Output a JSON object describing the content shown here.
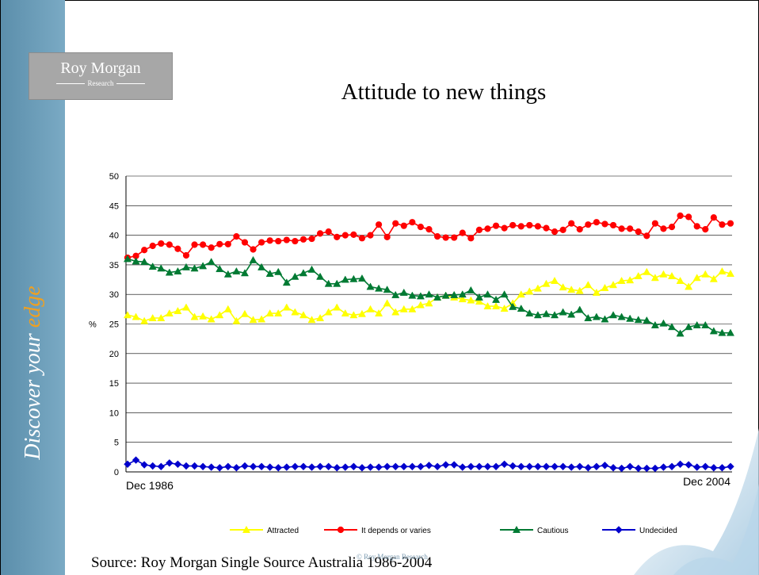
{
  "header": {
    "logo_name": "Roy Morgan",
    "logo_sub": "Research",
    "sidebar_tagline_main": "Discover your ",
    "sidebar_tagline_accent": "edge"
  },
  "footer": {
    "source": "Source: Roy Morgan Single Source Australia 1986-2004",
    "copyright": "© Roy Morgan Research"
  },
  "colors": {
    "sidebar": "#6a9cb8",
    "accent": "#f0a020",
    "attracted": "#ffff00",
    "depends": "#ff0000",
    "cautious": "#007a33",
    "undecided": "#0000cc"
  },
  "chart_data": {
    "type": "line",
    "title": "Attitude to new things",
    "ylabel": "%",
    "xlabel": "",
    "x_start_label": "Dec 1986",
    "x_end_label": "Dec 2004",
    "ylim": [
      0,
      50
    ],
    "yticks": [
      0,
      5,
      10,
      15,
      20,
      25,
      30,
      35,
      40,
      45,
      50
    ],
    "grid": "horizontal",
    "legend_position": "bottom",
    "series": [
      {
        "name": "Attracted",
        "color": "#ffff00",
        "marker": "triangle",
        "values": [
          26.5,
          26.2,
          25.5,
          26.0,
          26.0,
          26.8,
          27.2,
          27.8,
          26.2,
          26.3,
          25.8,
          26.5,
          27.5,
          25.5,
          26.7,
          25.7,
          25.8,
          26.8,
          26.8,
          27.8,
          27.0,
          26.5,
          25.7,
          26.0,
          27.0,
          27.8,
          26.8,
          26.5,
          26.7,
          27.5,
          26.8,
          28.5,
          27.0,
          27.5,
          27.5,
          28.2,
          28.5,
          29.5,
          29.8,
          29.5,
          29.2,
          29.0,
          28.8,
          28.0,
          28.0,
          27.6,
          28.5,
          30.0,
          30.5,
          31.0,
          31.8,
          32.3,
          31.2,
          30.8,
          30.6,
          31.6,
          30.3,
          31.1,
          31.6,
          32.3,
          32.4,
          33.1,
          33.8,
          32.8,
          33.4,
          33.1,
          32.3,
          31.3,
          32.8,
          33.4,
          32.6,
          33.9,
          33.5
        ]
      },
      {
        "name": "It depends or varies",
        "color": "#ff0000",
        "marker": "circle",
        "values": [
          36.2,
          36.5,
          37.5,
          38.2,
          38.6,
          38.4,
          37.7,
          36.6,
          38.4,
          38.4,
          37.9,
          38.5,
          38.5,
          39.8,
          38.8,
          37.6,
          38.8,
          39.1,
          39.0,
          39.2,
          39.0,
          39.3,
          39.4,
          40.3,
          40.6,
          39.7,
          40.0,
          40.1,
          39.5,
          40.0,
          41.8,
          39.7,
          42.0,
          41.6,
          42.2,
          41.4,
          41.0,
          39.8,
          39.6,
          39.6,
          40.4,
          39.5,
          40.9,
          41.1,
          41.6,
          41.2,
          41.7,
          41.5,
          41.7,
          41.5,
          41.2,
          40.6,
          40.9,
          42.0,
          41.0,
          41.8,
          42.2,
          41.9,
          41.7,
          41.1,
          41.1,
          40.6,
          39.9,
          42.0,
          41.1,
          41.4,
          43.3,
          43.1,
          41.5,
          41.0,
          43.0,
          41.8,
          42.0
        ]
      },
      {
        "name": "Cautious",
        "color": "#007a33",
        "marker": "triangle",
        "values": [
          36.0,
          35.6,
          35.5,
          34.7,
          34.4,
          33.7,
          33.9,
          34.6,
          34.4,
          34.8,
          35.5,
          34.3,
          33.4,
          33.9,
          33.6,
          35.8,
          34.6,
          33.5,
          33.8,
          32.0,
          33.0,
          33.6,
          34.2,
          33.0,
          31.8,
          31.8,
          32.5,
          32.6,
          32.7,
          31.3,
          31.0,
          30.8,
          29.9,
          30.3,
          29.8,
          29.7,
          30.0,
          29.5,
          29.8,
          29.9,
          30.0,
          30.7,
          29.5,
          30.0,
          29.1,
          30.0,
          27.9,
          27.6,
          26.8,
          26.5,
          26.7,
          26.5,
          27.0,
          26.6,
          27.4,
          26.0,
          26.2,
          25.8,
          26.5,
          26.2,
          25.9,
          25.7,
          25.6,
          24.8,
          25.1,
          24.5,
          23.4,
          24.5,
          24.8,
          24.8,
          23.8,
          23.5,
          23.5
        ]
      },
      {
        "name": "Undecided",
        "color": "#0000cc",
        "marker": "diamond",
        "values": [
          1.3,
          2.0,
          1.2,
          1.0,
          0.9,
          1.5,
          1.3,
          1.0,
          1.0,
          0.9,
          0.8,
          0.7,
          0.9,
          0.7,
          1.0,
          0.9,
          0.9,
          0.8,
          0.7,
          0.8,
          0.9,
          0.9,
          0.8,
          0.9,
          0.9,
          0.7,
          0.8,
          0.9,
          0.7,
          0.8,
          0.8,
          0.9,
          0.9,
          0.9,
          0.9,
          0.9,
          1.1,
          0.9,
          1.2,
          1.2,
          0.8,
          0.9,
          0.9,
          0.9,
          0.9,
          1.3,
          1.0,
          0.9,
          0.9,
          0.9,
          0.9,
          0.9,
          0.9,
          0.8,
          0.9,
          0.7,
          0.9,
          1.1,
          0.7,
          0.6,
          0.9,
          0.6,
          0.6,
          0.6,
          0.8,
          0.9,
          1.3,
          1.2,
          0.8,
          0.9,
          0.7,
          0.7,
          0.9
        ]
      }
    ]
  }
}
